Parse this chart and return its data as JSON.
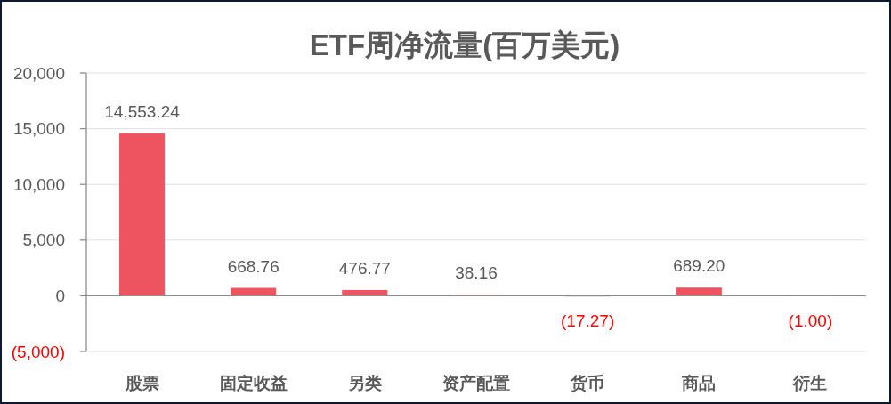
{
  "chart_data": {
    "type": "bar",
    "title": "ETF周净流量(百万美元)",
    "categories": [
      "股票",
      "固定收益",
      "另类",
      "资产配置",
      "货币",
      "商品",
      "衍生"
    ],
    "values": [
      14553.24,
      668.76,
      476.77,
      38.16,
      -17.27,
      689.2,
      -1.0
    ],
    "colors": [
      "#ee5460",
      "#ee5460",
      "#ee5460",
      "#ee5460",
      "#1a1a1a",
      "#ee5460",
      "#1a1a1a"
    ],
    "value_labels": [
      "14,553.24",
      "668.76",
      "476.77",
      "38.16",
      "(17.27)",
      "689.20",
      "(1.00)"
    ],
    "ylim": [
      -5000,
      20000
    ],
    "yticks": [
      {
        "value": -5000,
        "label": "(5,000)"
      },
      0,
      {
        "value": 5000,
        "label": "5,000"
      },
      {
        "value": 10000,
        "label": "10,000"
      },
      {
        "value": 15000,
        "label": "15,000"
      },
      {
        "value": 20000,
        "label": "20,000"
      }
    ],
    "grid": "y"
  }
}
